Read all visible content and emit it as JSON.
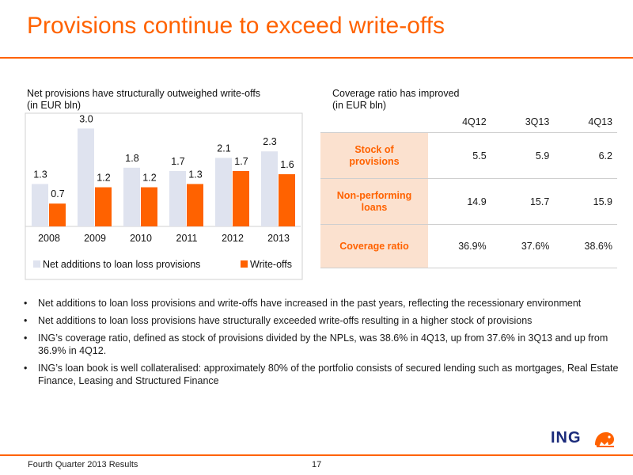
{
  "title": "Provisions continue to exceed write-offs",
  "chart_subtitle": [
    "Net provisions have structurally outweighed write-offs",
    "(in EUR bln)"
  ],
  "table_subtitle": [
    "Coverage ratio has improved",
    "(in EUR bln)"
  ],
  "chart_data": {
    "type": "bar",
    "categories": [
      "2008",
      "2009",
      "2010",
      "2011",
      "2012",
      "2013"
    ],
    "series": [
      {
        "name": "Net additions to loan loss provisions",
        "values": [
          1.3,
          3.0,
          1.8,
          1.7,
          2.1,
          2.3
        ],
        "labels": [
          "1.3",
          "3.0",
          "1.8",
          "1.7",
          "2.1",
          "2.3"
        ],
        "color": "#dfe3ef"
      },
      {
        "name": "Write-offs",
        "values": [
          0.7,
          1.2,
          1.2,
          1.3,
          1.7,
          1.6
        ],
        "labels": [
          "0.7",
          "1.2",
          "1.2",
          "1.3",
          "1.7",
          "1.6"
        ],
        "color": "#ff6200"
      }
    ],
    "ylim": [
      0,
      3.3
    ],
    "legend_position": "bottom",
    "grid": false
  },
  "table": {
    "columns": [
      "4Q12",
      "3Q13",
      "4Q13"
    ],
    "rows": [
      {
        "label": [
          "Stock of",
          "provisions"
        ],
        "values": [
          "5.5",
          "5.9",
          "6.2"
        ]
      },
      {
        "label": [
          "Non-performing",
          "loans"
        ],
        "values": [
          "14.9",
          "15.7",
          "15.9"
        ]
      },
      {
        "label": [
          "Coverage ratio"
        ],
        "values": [
          "36.9%",
          "37.6%",
          "38.6%"
        ]
      }
    ]
  },
  "bullets": [
    "Net additions to loan loss provisions and write-offs have increased in the past years, reflecting the recessionary environment",
    "Net additions to loan loss provisions have structurally exceeded write-offs resulting in a higher stock of provisions",
    "ING’s coverage ratio, defined as stock of provisions divided by the NPLs, was 38.6% in 4Q13, up from 37.6% in 3Q13 and up from 36.9% in 4Q12.",
    "ING’s loan book is well collateralised: approximately 80% of the portfolio consists of secured lending such as mortgages, Real Estate Finance, Leasing and Structured Finance"
  ],
  "logo_text": "ING",
  "footer": {
    "left": "Fourth Quarter 2013 Results",
    "page": "17"
  },
  "colors": {
    "accent": "#ff6200",
    "label_bg": "#fbe1cf",
    "bar_light": "#dfe3ef",
    "logo_blue": "#1b2b7b"
  }
}
